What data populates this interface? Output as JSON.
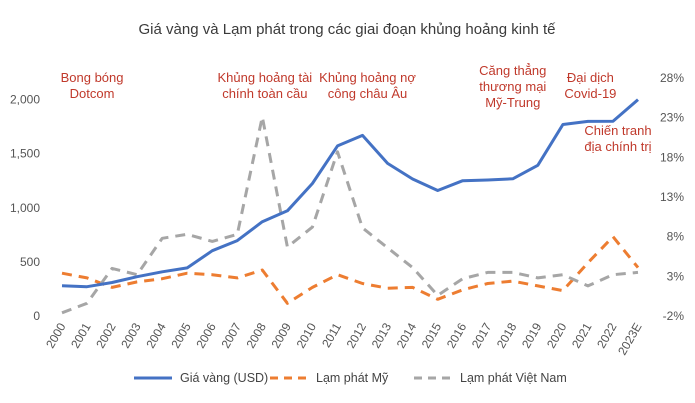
{
  "chart_data": {
    "type": "line",
    "title": "Giá vàng và Lạm phát trong các giai đoạn khủng hoảng kinh tế",
    "xlabel": "",
    "ylabel": "",
    "x": [
      "2000",
      "2001",
      "2002",
      "2003",
      "2004",
      "2005",
      "2006",
      "2007",
      "2008",
      "2009",
      "2010",
      "2011",
      "2012",
      "2013",
      "2014",
      "2015",
      "2016",
      "2017",
      "2018",
      "2019",
      "2020",
      "2021",
      "2022",
      "2023E"
    ],
    "y_left_ticks": [
      "0",
      "500",
      "1,000",
      "1,500",
      "2,000"
    ],
    "y_left_range": [
      0,
      2200
    ],
    "y_right_ticks": [
      "-2%",
      "3%",
      "8%",
      "13%",
      "18%",
      "23%",
      "28%"
    ],
    "y_right_range": [
      -2,
      28
    ],
    "grid": false,
    "legend_position": "bottom",
    "series": [
      {
        "name": "Giá vàng (USD)",
        "axis": "left",
        "color": "#4472c4",
        "dash": "solid",
        "values": [
          279,
          271,
          310,
          363,
          409,
          445,
          604,
          697,
          872,
          972,
          1225,
          1572,
          1669,
          1411,
          1266,
          1160,
          1251,
          1257,
          1268,
          1393,
          1770,
          1799,
          1800,
          2000
        ]
      },
      {
        "name": "Lạm phát Mỹ",
        "axis": "right",
        "color": "#ed7d31",
        "dash": "dashed",
        "values": [
          3.4,
          2.8,
          1.6,
          2.3,
          2.7,
          3.4,
          3.2,
          2.8,
          3.8,
          -0.4,
          1.6,
          3.2,
          2.1,
          1.5,
          1.6,
          0.1,
          1.3,
          2.1,
          2.4,
          1.8,
          1.2,
          4.7,
          8.0,
          4.1
        ]
      },
      {
        "name": "Lạm phát Việt Nam",
        "axis": "right",
        "color": "#a6a6a6",
        "dash": "dashed",
        "values": [
          -1.6,
          -0.4,
          4.0,
          3.2,
          7.8,
          8.3,
          7.4,
          8.3,
          23.1,
          6.7,
          9.2,
          18.7,
          9.1,
          6.6,
          4.1,
          0.6,
          2.7,
          3.5,
          3.5,
          2.8,
          3.2,
          1.8,
          3.2,
          3.5
        ]
      }
    ],
    "annotations": [
      {
        "lines": [
          "Bong bóng",
          "Dotcom"
        ],
        "x_index": 1.2
      },
      {
        "lines": [
          "Khủng hoảng tài",
          "chính toàn cầu"
        ],
        "x_index": 8.1
      },
      {
        "lines": [
          "Khủng hoảng nợ",
          "công châu Âu"
        ],
        "x_index": 12.2
      },
      {
        "lines": [
          "Căng thẳng",
          "thương mại",
          "Mỹ-Trung"
        ],
        "x_index": 18.0
      },
      {
        "lines": [
          "Đại dịch",
          "Covid-19"
        ],
        "x_index": 21.1
      },
      {
        "lines": [
          "Chiến tranh",
          "địa chính trị"
        ],
        "x_index": 22.2
      }
    ],
    "annotation_color": "#c0392b"
  }
}
